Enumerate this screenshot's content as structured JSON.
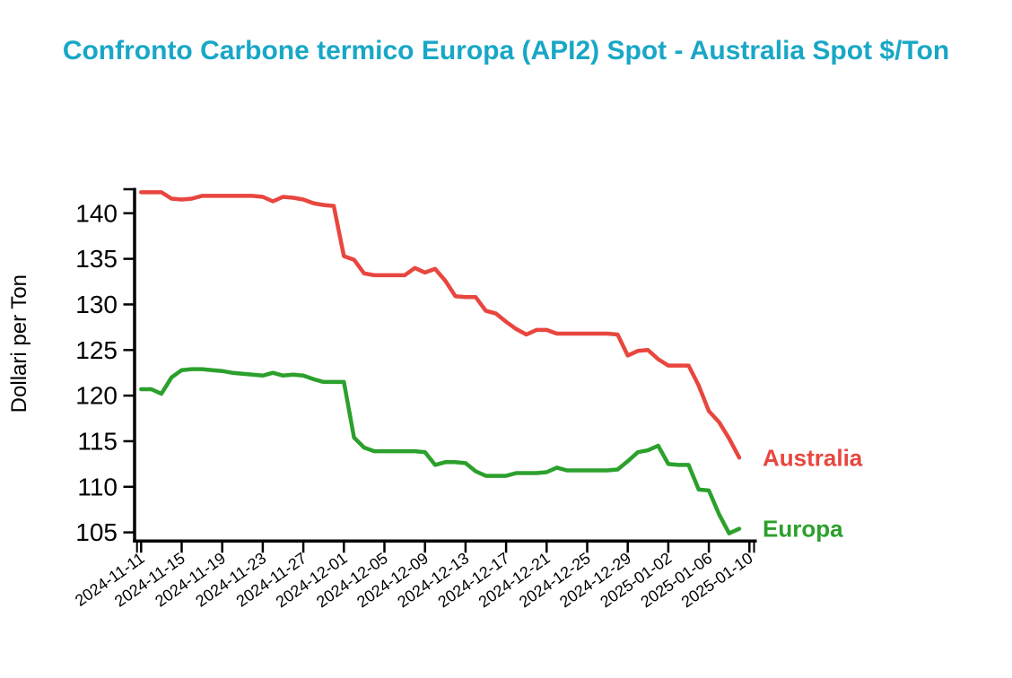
{
  "colors": {
    "title": "#18a7c6",
    "axis": "#000000",
    "tick_label": "#000000",
    "background": "#ffffff",
    "australia": "#e8463f",
    "europa": "#2ca02c"
  },
  "chart_data": {
    "type": "line",
    "title": "Confronto Carbone termico Europa (API2) Spot - Australia Spot $/Ton",
    "xlabel": "",
    "ylabel": "Dollari per Ton",
    "grid": false,
    "legend_position": "line-end-labels",
    "ylim": [
      104.05,
      142.78
    ],
    "yticks": [
      105,
      110,
      115,
      120,
      125,
      130,
      135,
      140
    ],
    "xtick_labels": [
      "2024-11-11",
      "2024-11-15",
      "2024-11-19",
      "2024-11-23",
      "2024-11-27",
      "2024-12-01",
      "2024-12-05",
      "2024-12-09",
      "2024-12-13",
      "2024-12-17",
      "2024-12-21",
      "2024-12-25",
      "2024-12-29",
      "2025-01-02",
      "2025-01-06",
      "2025-01-10"
    ],
    "x": [
      "2024-11-11",
      "2024-11-12",
      "2024-11-13",
      "2024-11-14",
      "2024-11-15",
      "2024-11-16",
      "2024-11-17",
      "2024-11-18",
      "2024-11-19",
      "2024-11-20",
      "2024-11-21",
      "2024-11-22",
      "2024-11-23",
      "2024-11-24",
      "2024-11-25",
      "2024-11-26",
      "2024-11-27",
      "2024-11-28",
      "2024-11-29",
      "2024-11-30",
      "2024-12-01",
      "2024-12-02",
      "2024-12-03",
      "2024-12-04",
      "2024-12-05",
      "2024-12-06",
      "2024-12-07",
      "2024-12-08",
      "2024-12-09",
      "2024-12-10",
      "2024-12-11",
      "2024-12-12",
      "2024-12-13",
      "2024-12-14",
      "2024-12-15",
      "2024-12-16",
      "2024-12-17",
      "2024-12-18",
      "2024-12-19",
      "2024-12-20",
      "2024-12-21",
      "2024-12-22",
      "2024-12-23",
      "2024-12-24",
      "2024-12-25",
      "2024-12-26",
      "2024-12-27",
      "2024-12-28",
      "2024-12-29",
      "2024-12-30",
      "2024-12-31",
      "2025-01-01",
      "2025-01-02",
      "2025-01-03",
      "2025-01-04",
      "2025-01-05",
      "2025-01-06",
      "2025-01-07",
      "2025-01-08",
      "2025-01-09"
    ],
    "series": [
      {
        "name": "Australia",
        "color": "#e8463f",
        "values": [
          142.3,
          142.3,
          142.3,
          141.6,
          141.5,
          141.6,
          141.9,
          141.9,
          141.9,
          141.9,
          141.9,
          141.9,
          141.8,
          141.3,
          141.8,
          141.7,
          141.5,
          141.1,
          140.9,
          140.8,
          135.3,
          134.9,
          133.4,
          133.2,
          133.2,
          133.2,
          133.2,
          134.0,
          133.5,
          133.9,
          132.6,
          130.9,
          130.8,
          130.8,
          129.3,
          129.0,
          128.1,
          127.3,
          126.7,
          127.2,
          127.2,
          126.8,
          126.8,
          126.8,
          126.8,
          126.8,
          126.8,
          126.7,
          124.4,
          124.9,
          125.0,
          124.0,
          123.3,
          123.3,
          123.3,
          121.1,
          118.3,
          117.1,
          115.3,
          113.2
        ]
      },
      {
        "name": "Europa",
        "color": "#2ca02c",
        "values": [
          120.7,
          120.7,
          120.2,
          122.0,
          122.8,
          122.9,
          122.9,
          122.8,
          122.7,
          122.5,
          122.4,
          122.3,
          122.2,
          122.5,
          122.2,
          122.3,
          122.2,
          121.8,
          121.5,
          121.5,
          121.5,
          115.4,
          114.3,
          113.9,
          113.9,
          113.9,
          113.9,
          113.9,
          113.8,
          112.4,
          112.7,
          112.7,
          112.6,
          111.7,
          111.2,
          111.2,
          111.2,
          111.5,
          111.5,
          111.5,
          111.6,
          112.1,
          111.8,
          111.8,
          111.8,
          111.8,
          111.8,
          111.9,
          112.8,
          113.8,
          114.0,
          114.5,
          112.5,
          112.4,
          112.4,
          109.7,
          109.6,
          107.0,
          104.9,
          105.4
        ]
      }
    ]
  }
}
